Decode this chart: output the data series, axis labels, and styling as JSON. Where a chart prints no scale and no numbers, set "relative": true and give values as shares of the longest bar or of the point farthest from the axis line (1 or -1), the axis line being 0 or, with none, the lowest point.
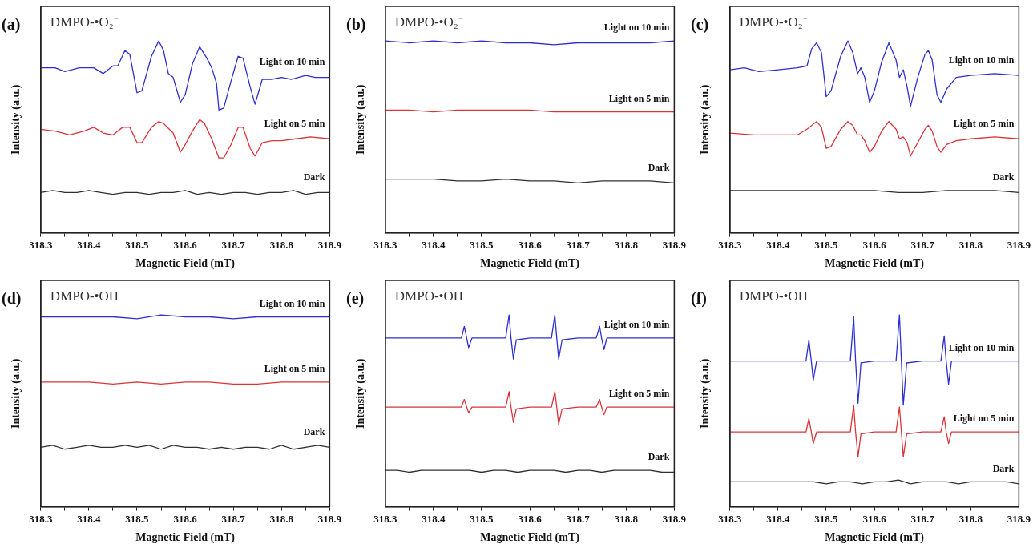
{
  "chart_data": [
    {
      "type": "line",
      "title": "(a)",
      "subtitle": "DMPO-•O₂⁻",
      "xlabel": "Magnetic Field (mT)",
      "ylabel": "Intensity (a.u.)",
      "relative": true,
      "xlim": [
        318.3,
        318.9
      ],
      "xticks": [
        318.3,
        {
          "value": 318.35,
          "label": null
        },
        318.4,
        {
          "value": 318.45,
          "label": null
        },
        318.5,
        {
          "value": 318.55,
          "label": null
        },
        318.6,
        {
          "value": 318.65,
          "label": null
        },
        318.7,
        {
          "value": 318.75,
          "label": null
        },
        318.8,
        {
          "value": 318.85,
          "label": null
        },
        318.9
      ],
      "series": [
        {
          "name": "Light on 10 min",
          "color": "#2f2fd0",
          "x": [
            318.3,
            318.33,
            318.35,
            318.38,
            318.41,
            318.43,
            318.45,
            318.46,
            318.475,
            318.485,
            318.5,
            318.51,
            318.53,
            318.545,
            318.555,
            318.565,
            318.575,
            318.59,
            318.6,
            318.615,
            318.63,
            318.645,
            318.655,
            318.665,
            318.67,
            318.68,
            318.695,
            318.71,
            318.72,
            318.735,
            318.745,
            318.76,
            318.78,
            318.8,
            318.82,
            318.85,
            318.87,
            318.9
          ],
          "values": [
            0.86,
            0.86,
            0.84,
            0.86,
            0.86,
            0.83,
            0.87,
            0.87,
            0.95,
            0.93,
            0.73,
            0.74,
            0.92,
            1.0,
            0.95,
            0.83,
            0.81,
            0.68,
            0.72,
            0.88,
            0.97,
            0.91,
            0.86,
            0.78,
            0.64,
            0.65,
            0.79,
            0.92,
            0.91,
            0.76,
            0.67,
            0.8,
            0.8,
            0.81,
            0.8,
            0.82,
            0.81,
            0.81
          ]
        },
        {
          "name": "Light on 5 min",
          "color": "#d9343a",
          "x": [
            318.3,
            318.33,
            318.36,
            318.39,
            318.41,
            318.43,
            318.45,
            318.47,
            318.485,
            318.5,
            318.51,
            318.53,
            318.545,
            318.555,
            318.575,
            318.59,
            318.6,
            318.615,
            318.63,
            318.64,
            318.655,
            318.67,
            318.68,
            318.695,
            318.71,
            318.72,
            318.735,
            318.745,
            318.76,
            318.78,
            318.8,
            318.83,
            318.86,
            318.9
          ],
          "values": [
            0.54,
            0.53,
            0.51,
            0.53,
            0.55,
            0.52,
            0.51,
            0.55,
            0.55,
            0.47,
            0.47,
            0.55,
            0.58,
            0.57,
            0.52,
            0.42,
            0.46,
            0.53,
            0.59,
            0.57,
            0.49,
            0.39,
            0.39,
            0.46,
            0.55,
            0.55,
            0.44,
            0.4,
            0.47,
            0.48,
            0.48,
            0.49,
            0.5,
            0.49
          ]
        },
        {
          "name": "Dark",
          "color": "#303030",
          "x": [
            318.3,
            318.325,
            318.35,
            318.375,
            318.4,
            318.425,
            318.45,
            318.475,
            318.5,
            318.525,
            318.55,
            318.575,
            318.6,
            318.625,
            318.65,
            318.675,
            318.7,
            318.725,
            318.75,
            318.775,
            318.8,
            318.825,
            318.85,
            318.875,
            318.9
          ],
          "values": [
            0.21,
            0.22,
            0.21,
            0.21,
            0.22,
            0.21,
            0.2,
            0.21,
            0.21,
            0.2,
            0.21,
            0.21,
            0.22,
            0.2,
            0.21,
            0.2,
            0.21,
            0.21,
            0.2,
            0.21,
            0.21,
            0.22,
            0.2,
            0.21,
            0.21
          ]
        }
      ]
    },
    {
      "type": "line",
      "title": "(b)",
      "subtitle": "DMPO-•O₂⁻",
      "xlabel": "Magnetic Field (mT)",
      "ylabel": "Intensity (a.u.)",
      "relative": true,
      "xlim": [
        318.3,
        318.9
      ],
      "xticks": [
        318.3,
        {
          "value": 318.35,
          "label": null
        },
        318.4,
        {
          "value": 318.45,
          "label": null
        },
        318.5,
        {
          "value": 318.55,
          "label": null
        },
        318.6,
        {
          "value": 318.65,
          "label": null
        },
        318.7,
        {
          "value": 318.75,
          "label": null
        },
        318.8,
        {
          "value": 318.85,
          "label": null
        },
        318.9
      ],
      "series": [
        {
          "name": "Light on 10 min",
          "color": "#2f2fd0",
          "x": [
            318.3,
            318.35,
            318.4,
            318.45,
            318.5,
            318.55,
            318.6,
            318.65,
            318.7,
            318.75,
            318.8,
            318.85,
            318.9
          ],
          "values": [
            1.0,
            0.99,
            1.0,
            0.99,
            1.0,
            0.99,
            0.99,
            0.98,
            0.99,
            0.99,
            0.99,
            0.99,
            1.0
          ]
        },
        {
          "name": "Light on 5 min",
          "color": "#d9343a",
          "x": [
            318.3,
            318.35,
            318.4,
            318.45,
            318.5,
            318.55,
            318.6,
            318.65,
            318.7,
            318.75,
            318.8,
            318.85,
            318.9
          ],
          "values": [
            0.64,
            0.64,
            0.63,
            0.64,
            0.64,
            0.64,
            0.64,
            0.63,
            0.63,
            0.63,
            0.63,
            0.63,
            0.63
          ]
        },
        {
          "name": "Dark",
          "color": "#303030",
          "x": [
            318.3,
            318.35,
            318.4,
            318.45,
            318.5,
            318.55,
            318.6,
            318.65,
            318.7,
            318.75,
            318.8,
            318.85,
            318.9
          ],
          "values": [
            0.28,
            0.28,
            0.28,
            0.27,
            0.27,
            0.28,
            0.27,
            0.27,
            0.26,
            0.27,
            0.27,
            0.27,
            0.26
          ]
        }
      ]
    },
    {
      "type": "line",
      "title": "(c)",
      "subtitle": "DMPO-•O₂⁻",
      "xlabel": "Magnetic Field (mT)",
      "ylabel": "Intensity (a.u.)",
      "relative": true,
      "xlim": [
        318.3,
        318.9
      ],
      "xticks": [
        318.3,
        {
          "value": 318.35,
          "label": null
        },
        318.4,
        {
          "value": 318.45,
          "label": null
        },
        318.5,
        {
          "value": 318.55,
          "label": null
        },
        318.6,
        {
          "value": 318.65,
          "label": null
        },
        318.7,
        {
          "value": 318.75,
          "label": null
        },
        318.8,
        {
          "value": 318.85,
          "label": null
        },
        318.9
      ],
      "series": [
        {
          "name": "Light on 10 min",
          "color": "#2f2fd0",
          "x": [
            318.3,
            318.33,
            318.36,
            318.4,
            318.44,
            318.46,
            318.47,
            318.48,
            318.49,
            318.5,
            318.51,
            318.53,
            318.545,
            318.555,
            318.565,
            318.572,
            318.58,
            318.59,
            318.6,
            318.615,
            318.63,
            318.645,
            318.652,
            318.66,
            318.668,
            318.675,
            318.69,
            318.705,
            318.712,
            318.72,
            318.73,
            318.738,
            318.75,
            318.77,
            318.8,
            318.85,
            318.9
          ],
          "values": [
            0.85,
            0.86,
            0.84,
            0.85,
            0.86,
            0.87,
            0.96,
            0.99,
            0.94,
            0.71,
            0.74,
            0.92,
            1.0,
            0.94,
            0.83,
            0.86,
            0.81,
            0.68,
            0.74,
            0.89,
            0.99,
            0.9,
            0.81,
            0.85,
            0.76,
            0.66,
            0.81,
            0.93,
            0.95,
            0.9,
            0.72,
            0.68,
            0.75,
            0.81,
            0.82,
            0.83,
            0.82
          ]
        },
        {
          "name": "Light on 5 min",
          "color": "#d9343a",
          "x": [
            318.3,
            318.35,
            318.4,
            318.44,
            318.46,
            318.48,
            318.49,
            318.5,
            318.51,
            318.53,
            318.545,
            318.555,
            318.565,
            318.572,
            318.58,
            318.59,
            318.6,
            318.615,
            318.63,
            318.645,
            318.652,
            318.66,
            318.668,
            318.675,
            318.69,
            318.705,
            318.712,
            318.72,
            318.73,
            318.738,
            318.75,
            318.77,
            318.8,
            318.85,
            318.9
          ],
          "values": [
            0.52,
            0.51,
            0.51,
            0.51,
            0.54,
            0.58,
            0.55,
            0.44,
            0.45,
            0.54,
            0.58,
            0.56,
            0.51,
            0.51,
            0.48,
            0.42,
            0.45,
            0.53,
            0.58,
            0.54,
            0.49,
            0.5,
            0.47,
            0.4,
            0.47,
            0.54,
            0.56,
            0.53,
            0.45,
            0.42,
            0.46,
            0.48,
            0.49,
            0.5,
            0.49
          ]
        },
        {
          "name": "Dark",
          "color": "#303030",
          "x": [
            318.3,
            318.35,
            318.4,
            318.45,
            318.5,
            318.55,
            318.6,
            318.65,
            318.7,
            318.75,
            318.8,
            318.85,
            318.9
          ],
          "values": [
            0.22,
            0.22,
            0.22,
            0.22,
            0.22,
            0.22,
            0.22,
            0.21,
            0.21,
            0.22,
            0.22,
            0.22,
            0.21
          ]
        }
      ]
    },
    {
      "type": "line",
      "title": "(d)",
      "subtitle": "DMPO-•OH",
      "xlabel": "Magnetic Field (mT)",
      "ylabel": "Intensity (a.u.)",
      "relative": true,
      "xlim": [
        318.3,
        318.9
      ],
      "xticks": [
        318.3,
        {
          "value": 318.35,
          "label": null
        },
        318.4,
        {
          "value": 318.45,
          "label": null
        },
        318.5,
        {
          "value": 318.55,
          "label": null
        },
        318.6,
        {
          "value": 318.65,
          "label": null
        },
        318.7,
        {
          "value": 318.75,
          "label": null
        },
        318.8,
        {
          "value": 318.85,
          "label": null
        },
        318.9
      ],
      "series": [
        {
          "name": "Light on 10 min",
          "color": "#2f2fd0",
          "x": [
            318.3,
            318.35,
            318.4,
            318.45,
            318.5,
            318.55,
            318.6,
            318.65,
            318.7,
            318.75,
            318.8,
            318.85,
            318.9
          ],
          "values": [
            0.99,
            0.99,
            0.99,
            0.99,
            0.98,
            1.0,
            0.99,
            0.99,
            0.98,
            0.99,
            0.99,
            0.99,
            0.99
          ]
        },
        {
          "name": "Light on 5 min",
          "color": "#d9343a",
          "x": [
            318.3,
            318.35,
            318.4,
            318.45,
            318.5,
            318.55,
            318.6,
            318.65,
            318.7,
            318.75,
            318.8,
            318.85,
            318.9
          ],
          "values": [
            0.65,
            0.65,
            0.65,
            0.64,
            0.65,
            0.64,
            0.65,
            0.65,
            0.64,
            0.64,
            0.65,
            0.65,
            0.65
          ]
        },
        {
          "name": "Dark",
          "color": "#303030",
          "x": [
            318.3,
            318.325,
            318.35,
            318.375,
            318.4,
            318.425,
            318.45,
            318.475,
            318.5,
            318.525,
            318.55,
            318.575,
            318.6,
            318.625,
            318.65,
            318.675,
            318.7,
            318.725,
            318.75,
            318.775,
            318.8,
            318.825,
            318.85,
            318.875,
            318.9
          ],
          "values": [
            0.31,
            0.32,
            0.3,
            0.31,
            0.32,
            0.31,
            0.31,
            0.32,
            0.31,
            0.32,
            0.3,
            0.32,
            0.31,
            0.31,
            0.3,
            0.31,
            0.3,
            0.31,
            0.31,
            0.3,
            0.32,
            0.3,
            0.31,
            0.32,
            0.31
          ]
        }
      ]
    },
    {
      "type": "line",
      "title": "(e)",
      "subtitle": "DMPO-•OH",
      "xlabel": "Magnetic Field (mT)",
      "ylabel": "Intensity (a.u.)",
      "relative": true,
      "xlim": [
        318.3,
        318.9
      ],
      "xticks": [
        318.3,
        {
          "value": 318.35,
          "label": null
        },
        318.4,
        {
          "value": 318.45,
          "label": null
        },
        318.5,
        {
          "value": 318.55,
          "label": null
        },
        318.6,
        {
          "value": 318.65,
          "label": null
        },
        318.7,
        {
          "value": 318.75,
          "label": null
        },
        318.8,
        {
          "value": 318.85,
          "label": null
        },
        318.9
      ],
      "series": [
        {
          "name": "Light on 10 min",
          "color": "#2f2fd0",
          "x": [
            318.3,
            318.35,
            318.4,
            318.45,
            318.458,
            318.464,
            318.469,
            318.473,
            318.48,
            318.52,
            318.55,
            318.557,
            318.561,
            318.566,
            318.572,
            318.6,
            318.645,
            318.652,
            318.656,
            318.66,
            318.667,
            318.7,
            318.738,
            318.745,
            318.749,
            318.754,
            318.76,
            318.8,
            318.85,
            318.9
          ],
          "values": [
            0.88,
            0.88,
            0.88,
            0.88,
            0.88,
            0.94,
            0.88,
            0.83,
            0.88,
            0.88,
            0.88,
            1.0,
            0.88,
            0.77,
            0.87,
            0.88,
            0.88,
            1.0,
            0.88,
            0.77,
            0.87,
            0.88,
            0.88,
            0.94,
            0.88,
            0.82,
            0.88,
            0.88,
            0.88,
            0.88
          ]
        },
        {
          "name": "Light on 5 min",
          "color": "#d9343a",
          "x": [
            318.3,
            318.35,
            318.4,
            318.45,
            318.458,
            318.464,
            318.469,
            318.473,
            318.48,
            318.52,
            318.55,
            318.557,
            318.561,
            318.566,
            318.572,
            318.6,
            318.645,
            318.652,
            318.656,
            318.66,
            318.667,
            318.7,
            318.738,
            318.745,
            318.749,
            318.754,
            318.76,
            318.8,
            318.85,
            318.9
          ],
          "values": [
            0.52,
            0.52,
            0.52,
            0.52,
            0.52,
            0.56,
            0.52,
            0.49,
            0.52,
            0.52,
            0.52,
            0.6,
            0.52,
            0.44,
            0.51,
            0.52,
            0.52,
            0.6,
            0.52,
            0.43,
            0.51,
            0.52,
            0.52,
            0.56,
            0.52,
            0.48,
            0.52,
            0.52,
            0.52,
            0.52
          ]
        },
        {
          "name": "Dark",
          "color": "#303030",
          "x": [
            318.3,
            318.325,
            318.35,
            318.375,
            318.4,
            318.425,
            318.45,
            318.475,
            318.5,
            318.525,
            318.55,
            318.575,
            318.6,
            318.625,
            318.65,
            318.675,
            318.7,
            318.725,
            318.75,
            318.775,
            318.8,
            318.825,
            318.85,
            318.875,
            318.9
          ],
          "values": [
            0.19,
            0.19,
            0.18,
            0.19,
            0.19,
            0.19,
            0.19,
            0.19,
            0.18,
            0.19,
            0.19,
            0.18,
            0.19,
            0.19,
            0.19,
            0.18,
            0.19,
            0.19,
            0.18,
            0.19,
            0.19,
            0.19,
            0.19,
            0.18,
            0.18
          ]
        }
      ]
    },
    {
      "type": "line",
      "title": "(f)",
      "subtitle": "DMPO-•OH",
      "xlabel": "Magnetic Field (mT)",
      "ylabel": "Intensity (a.u.)",
      "relative": true,
      "xlim": [
        318.3,
        318.9
      ],
      "xticks": [
        318.3,
        {
          "value": 318.35,
          "label": null
        },
        318.4,
        {
          "value": 318.45,
          "label": null
        },
        318.5,
        {
          "value": 318.55,
          "label": null
        },
        318.6,
        {
          "value": 318.65,
          "label": null
        },
        318.7,
        {
          "value": 318.75,
          "label": null
        },
        318.8,
        {
          "value": 318.85,
          "label": null
        },
        318.9
      ],
      "series": [
        {
          "name": "Light on 10 min",
          "color": "#2f2fd0",
          "x": [
            318.3,
            318.35,
            318.4,
            318.45,
            318.458,
            318.464,
            318.469,
            318.473,
            318.48,
            318.52,
            318.55,
            318.557,
            318.561,
            318.566,
            318.572,
            318.6,
            318.645,
            318.652,
            318.656,
            318.66,
            318.667,
            318.7,
            318.738,
            318.745,
            318.749,
            318.754,
            318.76,
            318.8,
            318.85,
            318.9
          ],
          "values": [
            0.76,
            0.76,
            0.76,
            0.76,
            0.76,
            0.87,
            0.76,
            0.66,
            0.76,
            0.76,
            0.76,
            0.99,
            0.76,
            0.54,
            0.75,
            0.76,
            0.76,
            1.0,
            0.76,
            0.53,
            0.75,
            0.76,
            0.76,
            0.89,
            0.76,
            0.64,
            0.76,
            0.76,
            0.76,
            0.76
          ]
        },
        {
          "name": "Light on 5 min",
          "color": "#d9343a",
          "x": [
            318.3,
            318.35,
            318.4,
            318.45,
            318.458,
            318.464,
            318.469,
            318.473,
            318.48,
            318.52,
            318.55,
            318.557,
            318.561,
            318.566,
            318.572,
            318.6,
            318.645,
            318.652,
            318.656,
            318.66,
            318.667,
            318.7,
            318.738,
            318.745,
            318.749,
            318.754,
            318.76,
            318.8,
            318.85,
            318.9
          ],
          "values": [
            0.39,
            0.39,
            0.39,
            0.39,
            0.39,
            0.46,
            0.39,
            0.33,
            0.39,
            0.39,
            0.39,
            0.53,
            0.39,
            0.26,
            0.38,
            0.39,
            0.39,
            0.52,
            0.39,
            0.26,
            0.38,
            0.39,
            0.39,
            0.47,
            0.39,
            0.33,
            0.39,
            0.39,
            0.39,
            0.39
          ]
        },
        {
          "name": "Dark",
          "color": "#303030",
          "x": [
            318.3,
            318.325,
            318.35,
            318.375,
            318.4,
            318.425,
            318.45,
            318.475,
            318.5,
            318.525,
            318.55,
            318.575,
            318.6,
            318.625,
            318.65,
            318.675,
            318.7,
            318.725,
            318.75,
            318.775,
            318.8,
            318.825,
            318.85,
            318.875,
            318.9
          ],
          "values": [
            0.13,
            0.13,
            0.13,
            0.13,
            0.13,
            0.13,
            0.13,
            0.13,
            0.12,
            0.13,
            0.13,
            0.12,
            0.13,
            0.13,
            0.14,
            0.12,
            0.13,
            0.13,
            0.13,
            0.12,
            0.13,
            0.13,
            0.13,
            0.13,
            0.12
          ]
        }
      ]
    }
  ]
}
